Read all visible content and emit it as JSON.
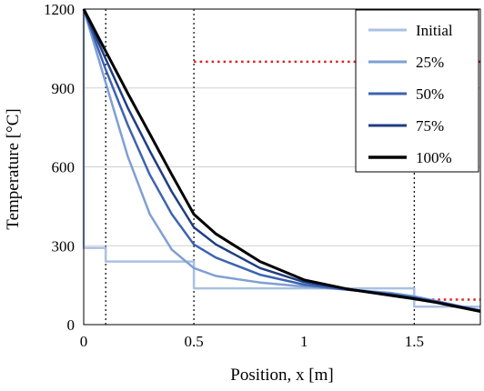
{
  "chart_data": {
    "type": "line",
    "xlabel": "Position, x [m]",
    "ylabel": "Temperature [°C]",
    "xlim": [
      0,
      1.8
    ],
    "ylim": [
      0,
      1200
    ],
    "x_ticks": [
      "0",
      "0.5",
      "1",
      "1.5"
    ],
    "x_tick_values": [
      0,
      0.5,
      1,
      1.5
    ],
    "y_ticks": [
      "0",
      "300",
      "600",
      "900",
      "1200"
    ],
    "y_tick_values": [
      0,
      300,
      600,
      900,
      1200
    ],
    "grid": "horizontal",
    "legend_position": "top-right",
    "vertical_dotted_lines_x": [
      0.1,
      0.5,
      1.5
    ],
    "red_dotted_segments": [
      {
        "x": [
          0.5,
          1.8
        ],
        "y": [
          1000,
          1000
        ]
      },
      {
        "x": [
          1.5,
          1.8
        ],
        "y": [
          95,
          95
        ]
      }
    ],
    "series": [
      {
        "name": "Initial",
        "color": "#a9c1e3",
        "width": 2.5,
        "points": [
          [
            0,
            1200
          ],
          [
            0,
            292
          ],
          [
            0.1,
            292
          ],
          [
            0.1,
            240
          ],
          [
            0.5,
            240
          ],
          [
            0.5,
            138
          ],
          [
            1.5,
            138
          ],
          [
            1.5,
            68
          ],
          [
            1.8,
            68
          ]
        ]
      },
      {
        "name": "25%",
        "color": "#7f9fd3",
        "width": 2.5,
        "points": [
          [
            0,
            1200
          ],
          [
            0.1,
            920
          ],
          [
            0.2,
            640
          ],
          [
            0.3,
            420
          ],
          [
            0.4,
            285
          ],
          [
            0.5,
            215
          ],
          [
            0.6,
            185
          ],
          [
            0.8,
            160
          ],
          [
            1.0,
            145
          ],
          [
            1.2,
            133
          ],
          [
            1.4,
            120
          ],
          [
            1.5,
            108
          ],
          [
            1.6,
            90
          ],
          [
            1.7,
            72
          ],
          [
            1.8,
            55
          ]
        ]
      },
      {
        "name": "50%",
        "color": "#3d63b0",
        "width": 2.5,
        "points": [
          [
            0,
            1200
          ],
          [
            0.1,
            970
          ],
          [
            0.2,
            760
          ],
          [
            0.3,
            570
          ],
          [
            0.4,
            420
          ],
          [
            0.5,
            305
          ],
          [
            0.6,
            255
          ],
          [
            0.8,
            190
          ],
          [
            1.0,
            152
          ],
          [
            1.2,
            132
          ],
          [
            1.4,
            115
          ],
          [
            1.5,
            103
          ],
          [
            1.6,
            88
          ],
          [
            1.7,
            70
          ],
          [
            1.8,
            53
          ]
        ]
      },
      {
        "name": "75%",
        "color": "#1f3e82",
        "width": 2.5,
        "points": [
          [
            0,
            1200
          ],
          [
            0.1,
            1010
          ],
          [
            0.2,
            825
          ],
          [
            0.3,
            660
          ],
          [
            0.4,
            505
          ],
          [
            0.5,
            370
          ],
          [
            0.6,
            305
          ],
          [
            0.8,
            215
          ],
          [
            1.0,
            162
          ],
          [
            1.2,
            135
          ],
          [
            1.4,
            114
          ],
          [
            1.5,
            101
          ],
          [
            1.6,
            86
          ],
          [
            1.7,
            69
          ],
          [
            1.8,
            52
          ]
        ]
      },
      {
        "name": "100%",
        "color": "#000000",
        "width": 3,
        "points": [
          [
            0,
            1200
          ],
          [
            0.1,
            1040
          ],
          [
            0.2,
            880
          ],
          [
            0.3,
            725
          ],
          [
            0.4,
            570
          ],
          [
            0.5,
            420
          ],
          [
            0.6,
            345
          ],
          [
            0.8,
            240
          ],
          [
            1.0,
            170
          ],
          [
            1.2,
            135
          ],
          [
            1.4,
            110
          ],
          [
            1.5,
            98
          ],
          [
            1.6,
            84
          ],
          [
            1.7,
            67
          ],
          [
            1.8,
            50
          ]
        ]
      }
    ]
  }
}
